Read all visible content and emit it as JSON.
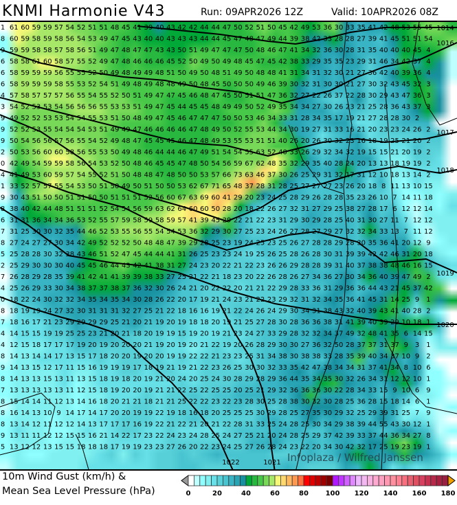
{
  "header": {
    "title": "KNMI Harmonie V43",
    "run": "Run: 09APR2026 12Z",
    "valid": "Valid: 10APR2026 08Z"
  },
  "legend": {
    "line1": "10m Wind Gust (km/h) &",
    "line2": "Mean Sea Level Pressure (hPa)",
    "units": "km/h",
    "range": [
      0,
      180
    ],
    "step": 4,
    "tick_labels": [
      "0",
      "20",
      "40",
      "60",
      "80",
      "100",
      "120",
      "140",
      "160",
      "180"
    ],
    "colors": [
      "#ffffff",
      "#c0ffff",
      "#90ffff",
      "#80f0f0",
      "#68e0e8",
      "#58d0d8",
      "#48c4d0",
      "#38b4c4",
      "#28a4b4",
      "#1890a0",
      "#00a838",
      "#28b840",
      "#48c848",
      "#78d858",
      "#a8e868",
      "#f8f878",
      "#ffd870",
      "#ffb860",
      "#ff9850",
      "#ff7040",
      "#ff0000",
      "#e00000",
      "#c00000",
      "#a00000",
      "#780000",
      "#b018ff",
      "#c038ff",
      "#d060ff",
      "#e088ff",
      "#f0b8ff",
      "#f4b8f0",
      "#f8b0e0",
      "#ffa8d0",
      "#ffa0c0",
      "#ff98b0",
      "#ff90a0",
      "#ff8090",
      "#f87080",
      "#e86070",
      "#e05060",
      "#d84060",
      "#c83050",
      "#b82848",
      "#a82040",
      "#982040"
    ]
  },
  "watermark": "Infoplaza / Wilfred Janssen",
  "isobars": [
    {
      "value": "1014"
    },
    {
      "value": "1016"
    },
    {
      "value": "1017"
    },
    {
      "value": "1018"
    },
    {
      "value": "1019"
    },
    {
      "value": "1020"
    },
    {
      "value": "1022"
    },
    {
      "value": "1021"
    }
  ],
  "gust_grid": [
    [
      1,
      61,
      60,
      59,
      59,
      57,
      54,
      52,
      51,
      51,
      48,
      45,
      41,
      39,
      40,
      43,
      42,
      42,
      44,
      44,
      47,
      50,
      52,
      51,
      50,
      45,
      42,
      49,
      53,
      36,
      30,
      33,
      35,
      41,
      42,
      48,
      53,
      55,
      45
    ],
    [
      8,
      60,
      59,
      58,
      59,
      58,
      56,
      54,
      53,
      49,
      47,
      45,
      43,
      40,
      40,
      43,
      43,
      43,
      44,
      44,
      45,
      47,
      48,
      47,
      49,
      44,
      39,
      38,
      42,
      33,
      28,
      28,
      27,
      39,
      41,
      45,
      51,
      51,
      54
    ],
    [
      9,
      59,
      59,
      58,
      58,
      57,
      58,
      56,
      51,
      49,
      47,
      48,
      47,
      47,
      43,
      43,
      50,
      51,
      49,
      47,
      47,
      47,
      50,
      48,
      46,
      47,
      41,
      34,
      32,
      36,
      30,
      28,
      31,
      35,
      40,
      40,
      40,
      45,
      4
    ],
    [
      6,
      58,
      58,
      61,
      60,
      58,
      57,
      55,
      52,
      49,
      47,
      48,
      46,
      46,
      46,
      45,
      52,
      50,
      49,
      50,
      49,
      48,
      45,
      47,
      45,
      42,
      38,
      33,
      29,
      35,
      35,
      23,
      29,
      31,
      46,
      34,
      42,
      37,
      4
    ],
    [
      6,
      58,
      59,
      59,
      59,
      56,
      55,
      55,
      52,
      50,
      49,
      48,
      49,
      49,
      48,
      51,
      50,
      49,
      50,
      48,
      51,
      49,
      50,
      48,
      48,
      41,
      31,
      34,
      31,
      32,
      30,
      21,
      27,
      36,
      42,
      40,
      39,
      36,
      4
    ],
    [
      6,
      58,
      59,
      59,
      59,
      58,
      55,
      53,
      52,
      54,
      51,
      49,
      48,
      49,
      48,
      48,
      49,
      50,
      48,
      45,
      50,
      50,
      50,
      49,
      46,
      39,
      30,
      32,
      31,
      30,
      30,
      21,
      27,
      30,
      32,
      43,
      45,
      32,
      3
    ],
    [
      4,
      57,
      58,
      57,
      57,
      57,
      56,
      55,
      54,
      55,
      52,
      50,
      51,
      49,
      47,
      47,
      45,
      46,
      48,
      47,
      45,
      50,
      51,
      51,
      47,
      36,
      32,
      27,
      22,
      26,
      37,
      22,
      28,
      30,
      29,
      43,
      47,
      36,
      3
    ],
    [
      3,
      54,
      52,
      53,
      53,
      54,
      56,
      56,
      56,
      55,
      53,
      53,
      51,
      49,
      47,
      45,
      44,
      45,
      45,
      48,
      49,
      49,
      50,
      52,
      49,
      35,
      34,
      34,
      27,
      30,
      26,
      23,
      21,
      25,
      28,
      36,
      43,
      37,
      3
    ],
    [
      9,
      49,
      52,
      52,
      53,
      53,
      54,
      54,
      55,
      53,
      51,
      50,
      48,
      49,
      47,
      45,
      46,
      47,
      47,
      47,
      50,
      50,
      53,
      46,
      34,
      33,
      31,
      28,
      34,
      35,
      17,
      19,
      21,
      27,
      28,
      28,
      30,
      2
    ],
    [
      9,
      52,
      52,
      53,
      55,
      54,
      54,
      54,
      53,
      51,
      49,
      49,
      47,
      46,
      46,
      46,
      46,
      47,
      48,
      49,
      50,
      52,
      55,
      53,
      44,
      34,
      30,
      19,
      27,
      31,
      33,
      16,
      21,
      20,
      23,
      23,
      24,
      26,
      2
    ],
    [
      9,
      50,
      54,
      56,
      56,
      57,
      56,
      55,
      54,
      52,
      49,
      48,
      47,
      45,
      45,
      45,
      46,
      47,
      48,
      49,
      53,
      55,
      53,
      51,
      51,
      40,
      26,
      20,
      26,
      30,
      32,
      23,
      16,
      18,
      19,
      25,
      21,
      20,
      2
    ],
    [
      2,
      50,
      53,
      56,
      60,
      60,
      58,
      56,
      55,
      53,
      50,
      49,
      48,
      46,
      44,
      44,
      46,
      47,
      49,
      51,
      54,
      54,
      55,
      63,
      52,
      40,
      33,
      26,
      29,
      32,
      34,
      32,
      19,
      15,
      15,
      21,
      20,
      19,
      2
    ],
    [
      0,
      42,
      49,
      54,
      59,
      59,
      58,
      56,
      54,
      53,
      52,
      50,
      48,
      46,
      45,
      45,
      47,
      48,
      50,
      54,
      56,
      59,
      67,
      62,
      48,
      35,
      32,
      29,
      35,
      40,
      28,
      24,
      20,
      13,
      13,
      18,
      19,
      19,
      2
    ],
    [
      4,
      41,
      49,
      53,
      60,
      59,
      57,
      54,
      55,
      52,
      51,
      50,
      48,
      48,
      47,
      48,
      50,
      50,
      53,
      57,
      66,
      73,
      63,
      46,
      37,
      30,
      26,
      25,
      29,
      31,
      32,
      17,
      31,
      12,
      10,
      18,
      13,
      14,
      2
    ],
    [
      1,
      33,
      52,
      57,
      57,
      55,
      54,
      53,
      50,
      51,
      50,
      49,
      50,
      51,
      50,
      50,
      53,
      62,
      67,
      71,
      65,
      48,
      37,
      28,
      31,
      28,
      25,
      27,
      27,
      27,
      23,
      26,
      20,
      18,
      8,
      11,
      13,
      10,
      15
    ],
    [
      9,
      30,
      43,
      51,
      50,
      50,
      51,
      51,
      50,
      50,
      51,
      51,
      51,
      52,
      56,
      60,
      67,
      63,
      69,
      60,
      41,
      29,
      20,
      23,
      24,
      25,
      28,
      29,
      26,
      28,
      28,
      35,
      23,
      26,
      10,
      7,
      14,
      11,
      18
    ],
    [
      8,
      38,
      40,
      42,
      44,
      48,
      51,
      51,
      51,
      52,
      54,
      54,
      56,
      59,
      63,
      62,
      64,
      60,
      60,
      50,
      28,
      20,
      18,
      22,
      26,
      27,
      32,
      31,
      27,
      29,
      25,
      38,
      27,
      28,
      17,
      6,
      12,
      12,
      14
    ],
    [
      6,
      31,
      31,
      36,
      34,
      34,
      36,
      53,
      52,
      55,
      57,
      59,
      58,
      59,
      58,
      59,
      57,
      41,
      39,
      45,
      29,
      22,
      21,
      22,
      23,
      31,
      29,
      30,
      29,
      28,
      25,
      40,
      31,
      30,
      27,
      11,
      7,
      12,
      12
    ],
    [
      7,
      31,
      25,
      30,
      30,
      32,
      35,
      44,
      46,
      52,
      53,
      55,
      56,
      55,
      54,
      54,
      53,
      36,
      32,
      29,
      30,
      27,
      25,
      23,
      24,
      26,
      27,
      28,
      27,
      29,
      27,
      32,
      32,
      34,
      33,
      13,
      7,
      11,
      12
    ],
    [
      8,
      27,
      24,
      27,
      27,
      30,
      34,
      42,
      49,
      52,
      52,
      52,
      50,
      48,
      48,
      47,
      39,
      29,
      28,
      25,
      23,
      19,
      24,
      25,
      23,
      25,
      26,
      27,
      28,
      28,
      29,
      28,
      30,
      35,
      36,
      41,
      20,
      12,
      9
    ],
    [
      5,
      25,
      28,
      28,
      30,
      32,
      38,
      43,
      46,
      51,
      52,
      47,
      45,
      44,
      44,
      41,
      31,
      26,
      25,
      23,
      23,
      24,
      19,
      25,
      26,
      25,
      28,
      26,
      28,
      30,
      31,
      39,
      39,
      42,
      42,
      46,
      31,
      20,
      18
    ],
    [
      2,
      25,
      29,
      30,
      30,
      30,
      40,
      45,
      45,
      46,
      44,
      43,
      42,
      41,
      38,
      31,
      27,
      24,
      23,
      20,
      22,
      21,
      22,
      23,
      26,
      26,
      29,
      28,
      28,
      39,
      31,
      40,
      37,
      38,
      38,
      48,
      46,
      16,
      15
    ],
    [
      7,
      26,
      28,
      29,
      28,
      35,
      39,
      41,
      42,
      41,
      41,
      39,
      39,
      38,
      33,
      27,
      25,
      21,
      22,
      21,
      18,
      23,
      20,
      22,
      26,
      28,
      26,
      27,
      34,
      36,
      27,
      30,
      34,
      36,
      40,
      39,
      47,
      49,
      2
    ],
    [
      4,
      25,
      26,
      29,
      33,
      30,
      34,
      38,
      37,
      37,
      38,
      37,
      36,
      32,
      30,
      26,
      24,
      21,
      20,
      22,
      22,
      20,
      21,
      21,
      22,
      29,
      28,
      33,
      36,
      31,
      29,
      36,
      36,
      44,
      43,
      21,
      45,
      37,
      42
    ],
    [
      0,
      18,
      22,
      24,
      30,
      32,
      32,
      34,
      35,
      34,
      35,
      34,
      30,
      28,
      26,
      22,
      20,
      17,
      19,
      21,
      24,
      23,
      21,
      22,
      23,
      29,
      32,
      31,
      32,
      34,
      35,
      36,
      41,
      45,
      31,
      14,
      25,
      9,
      1
    ],
    [
      8,
      18,
      19,
      19,
      24,
      27,
      32,
      30,
      31,
      31,
      31,
      32,
      27,
      25,
      21,
      22,
      18,
      16,
      16,
      19,
      21,
      22,
      24,
      26,
      24,
      29,
      30,
      34,
      31,
      38,
      43,
      32,
      40,
      39,
      43,
      41,
      40,
      28,
      2
    ],
    [
      7,
      18,
      16,
      17,
      21,
      23,
      29,
      29,
      29,
      29,
      25,
      21,
      20,
      21,
      19,
      20,
      19,
      18,
      18,
      20,
      19,
      21,
      25,
      27,
      28,
      30,
      28,
      36,
      36,
      38,
      31,
      41,
      39,
      40,
      39,
      29,
      10,
      18,
      1
    ],
    [
      4,
      14,
      15,
      15,
      19,
      19,
      25,
      25,
      23,
      21,
      20,
      21,
      18,
      20,
      19,
      19,
      15,
      19,
      20,
      19,
      21,
      23,
      24,
      27,
      33,
      29,
      28,
      32,
      32,
      34,
      37,
      49,
      32,
      48,
      41,
      35,
      6,
      14,
      15
    ],
    [
      4,
      12,
      15,
      18,
      17,
      17,
      17,
      19,
      20,
      19,
      20,
      20,
      20,
      21,
      19,
      20,
      19,
      20,
      21,
      22,
      19,
      20,
      26,
      28,
      29,
      30,
      30,
      27,
      36,
      32,
      50,
      28,
      37,
      37,
      31,
      37,
      9,
      3,
      1
    ],
    [
      8,
      14,
      13,
      14,
      14,
      17,
      13,
      15,
      17,
      18,
      20,
      20,
      19,
      20,
      20,
      19,
      19,
      22,
      22,
      21,
      23,
      23,
      25,
      31,
      34,
      38,
      30,
      38,
      38,
      33,
      28,
      35,
      39,
      40,
      34,
      37,
      10,
      9,
      2
    ],
    [
      9,
      14,
      13,
      15,
      12,
      17,
      11,
      15,
      16,
      19,
      19,
      19,
      17,
      18,
      19,
      21,
      19,
      21,
      22,
      23,
      26,
      25,
      30,
      30,
      32,
      33,
      35,
      42,
      47,
      38,
      34,
      34,
      31,
      37,
      41,
      34,
      8,
      10,
      6
    ],
    [
      8,
      14,
      13,
      13,
      15,
      13,
      11,
      13,
      15,
      18,
      19,
      18,
      20,
      19,
      21,
      20,
      24,
      20,
      25,
      24,
      30,
      28,
      29,
      28,
      29,
      36,
      44,
      35,
      34,
      35,
      30,
      32,
      26,
      34,
      31,
      12,
      12,
      10,
      1
    ],
    [
      7,
      13,
      13,
      13,
      13,
      13,
      11,
      12,
      15,
      18,
      19,
      20,
      20,
      19,
      21,
      21,
      22,
      25,
      22,
      25,
      25,
      20,
      25,
      21,
      29,
      32,
      36,
      36,
      36,
      30,
      22,
      28,
      34,
      33,
      15,
      9,
      10,
      6,
      9
    ],
    [
      8,
      15,
      14,
      14,
      11,
      12,
      13,
      14,
      16,
      18,
      20,
      21,
      21,
      18,
      21,
      21,
      25,
      22,
      22,
      23,
      22,
      23,
      28,
      30,
      25,
      28,
      38,
      30,
      32,
      30,
      28,
      25,
      36,
      28,
      15,
      18,
      14,
      6,
      1
    ],
    [
      8,
      16,
      14,
      13,
      10,
      9,
      14,
      17,
      14,
      17,
      20,
      20,
      19,
      19,
      22,
      19,
      18,
      16,
      18,
      20,
      25,
      25,
      25,
      30,
      29,
      28,
      25,
      27,
      35,
      30,
      29,
      32,
      25,
      29,
      39,
      31,
      25,
      7,
      9
    ],
    [
      8,
      13,
      14,
      12,
      11,
      12,
      12,
      14,
      13,
      17,
      17,
      17,
      16,
      19,
      22,
      21,
      22,
      21,
      20,
      21,
      22,
      28,
      31,
      33,
      25,
      24,
      28,
      25,
      30,
      34,
      29,
      38,
      39,
      44,
      55,
      43,
      30,
      12,
      1
    ],
    [
      9,
      13,
      11,
      11,
      12,
      12,
      15,
      15,
      16,
      21,
      14,
      22,
      17,
      23,
      22,
      24,
      23,
      24,
      28,
      25,
      24,
      27,
      25,
      21,
      20,
      24,
      28,
      25,
      29,
      37,
      42,
      39,
      33,
      37,
      44,
      36,
      34,
      27,
      8
    ],
    [
      5,
      13,
      12,
      12,
      13,
      15,
      15,
      18,
      18,
      18,
      17,
      19,
      19,
      23,
      23,
      27,
      26,
      20,
      22,
      23,
      24,
      25,
      27,
      26,
      28,
      24,
      23,
      22,
      20,
      34,
      30,
      42,
      32,
      17,
      25,
      19,
      23,
      19,
      1
    ]
  ]
}
